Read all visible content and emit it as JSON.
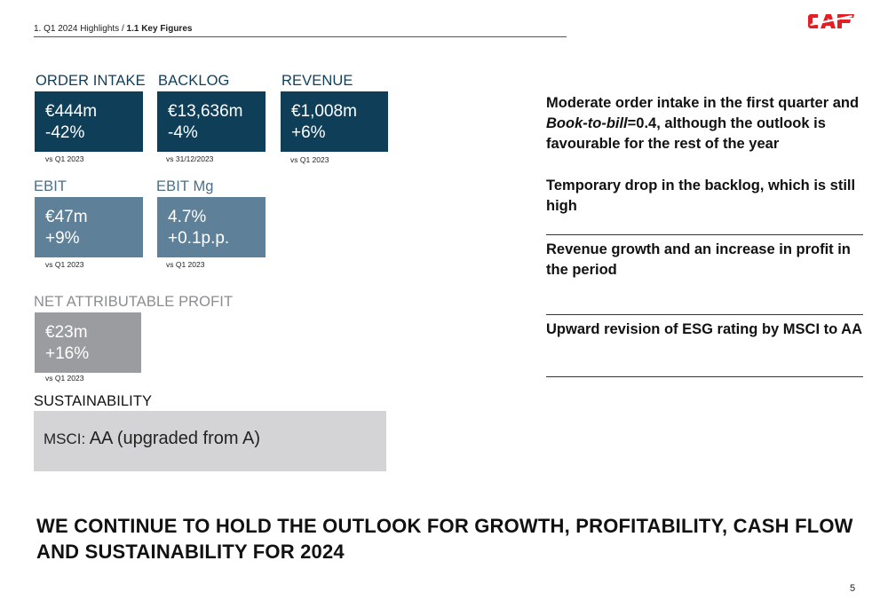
{
  "header": {
    "breadcrumb_section": "1. Q1 2024 Highlights /",
    "breadcrumb_current": "1.1 Key Figures",
    "logo_text": "CAF",
    "logo_color": "#e31e24"
  },
  "kpis": {
    "order_intake": {
      "title": "ORDER INTAKE",
      "value": "€444m",
      "change": "-42%",
      "note": "vs Q1 2023"
    },
    "backlog": {
      "title": "BACKLOG",
      "value": "€13,636m",
      "change": "-4%",
      "note": "vs 31/12/2023"
    },
    "revenue": {
      "title": "REVENUE",
      "value": "€1,008m",
      "change": "+6%",
      "note": "vs Q1 2023"
    },
    "ebit": {
      "title": "EBIT",
      "value": "€47m",
      "change": "+9%",
      "note": "vs Q1 2023"
    },
    "ebit_mg": {
      "title": "EBIT Mg",
      "value": "4.7%",
      "change": "+0.1p.p.",
      "note": "vs Q1 2023"
    },
    "net_profit": {
      "title": "NET ATTRIBUTABLE PROFIT",
      "value": "€23m",
      "change": "+16%",
      "note": "vs Q1 2023"
    }
  },
  "sustainability": {
    "title": "SUSTAINABILITY",
    "msci_prefix": "MSCI:",
    "msci_value": "AA (upgraded from A)"
  },
  "highlights": {
    "p1_part1": "Moderate order intake in the first quarter and ",
    "p1_italic": "Book-to-bill",
    "p1_part2": "=0.4, although the outlook is favourable for the rest of the year",
    "p2": "Temporary drop in the backlog, which is still high",
    "p3": "Revenue growth and an increase in profit in the period",
    "p4": "Upward revision of ESG rating by MSCI to AA"
  },
  "outlook": "WE CONTINUE TO HOLD THE OUTLOOK FOR GROWTH, PROFITABILITY, CASH FLOW AND SUSTAINABILITY FOR 2024",
  "page_number": "5",
  "colors": {
    "dark_blue": "#0f3f58",
    "mid_blue": "#5f8099",
    "grey": "#9a9c9f",
    "sustainability_bg": "#d4d4d6",
    "brand_red": "#e31e24"
  }
}
